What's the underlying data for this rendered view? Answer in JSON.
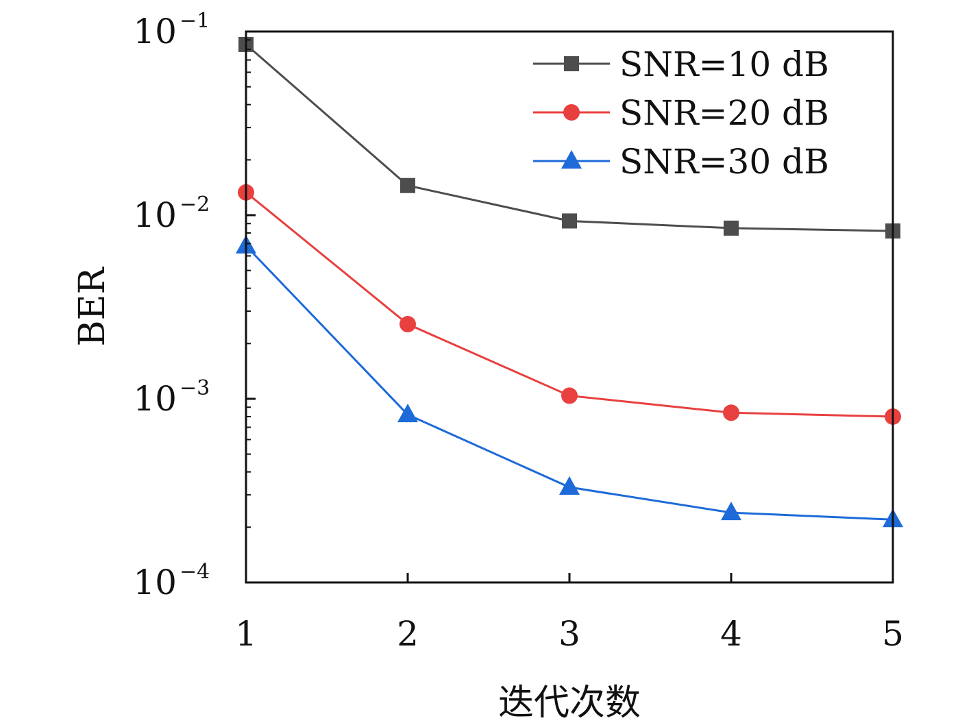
{
  "chart_data": {
    "type": "line",
    "xlabel": "迭代次数",
    "ylabel": "BER",
    "x": [
      1,
      2,
      3,
      4,
      5
    ],
    "xlim": [
      1,
      5
    ],
    "ylim": [
      0.0001,
      0.1
    ],
    "yscale": "log",
    "y_ticks": [
      {
        "base": "10",
        "exp": "−1"
      },
      {
        "base": "10",
        "exp": "−2"
      },
      {
        "base": "10",
        "exp": "−3"
      },
      {
        "base": "10",
        "exp": "−4"
      }
    ],
    "x_ticks": [
      "1",
      "2",
      "3",
      "4",
      "5"
    ],
    "legend_position": "top-right",
    "grid": false,
    "series": [
      {
        "name": "SNR=10 dB",
        "color": "#4d4d4d",
        "marker": "square",
        "values": [
          0.085,
          0.0145,
          0.0093,
          0.0085,
          0.0082
        ]
      },
      {
        "name": "SNR=20 dB",
        "color": "#e8403f",
        "marker": "circle",
        "values": [
          0.0133,
          0.00255,
          0.00104,
          0.00084,
          0.0008
        ]
      },
      {
        "name": "SNR=30 dB",
        "color": "#1d6ad8",
        "marker": "triangle",
        "values": [
          0.0068,
          0.00082,
          0.00033,
          0.00024,
          0.00022
        ]
      }
    ]
  }
}
